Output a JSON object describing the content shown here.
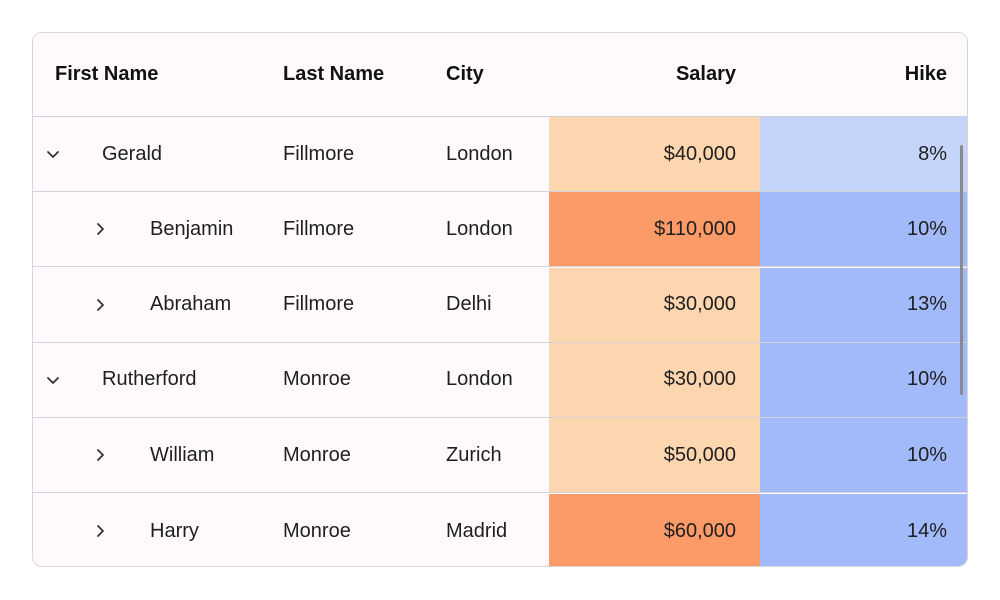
{
  "columns": {
    "first_name": "First Name",
    "last_name": "Last Name",
    "city": "City",
    "salary": "Salary",
    "hike": "Hike"
  },
  "rows": [
    {
      "first": "Gerald",
      "last": "Fillmore",
      "city": "London",
      "salary": "$40,000",
      "hike": "8%",
      "level": 0,
      "expanded": true,
      "salary_bg": "#fdd5ae",
      "hike_bg": "#c5d4fa"
    },
    {
      "first": "Benjamin",
      "last": "Fillmore",
      "city": "London",
      "salary": "$110,000",
      "hike": "10%",
      "level": 1,
      "expanded": false,
      "salary_bg": "#fc9a68",
      "hike_bg": "#a2b9fa"
    },
    {
      "first": "Abraham",
      "last": "Fillmore",
      "city": "Delhi",
      "salary": "$30,000",
      "hike": "13%",
      "level": 1,
      "expanded": false,
      "salary_bg": "#fdd5ae",
      "hike_bg": "#a2b9fa"
    },
    {
      "first": "Rutherford",
      "last": "Monroe",
      "city": "London",
      "salary": "$30,000",
      "hike": "10%",
      "level": 0,
      "expanded": true,
      "salary_bg": "#fdd5ae",
      "hike_bg": "#a2b9fa"
    },
    {
      "first": "William",
      "last": "Monroe",
      "city": "Zurich",
      "salary": "$50,000",
      "hike": "10%",
      "level": 1,
      "expanded": false,
      "salary_bg": "#fdd5ae",
      "hike_bg": "#a2b9fa"
    },
    {
      "first": "Harry",
      "last": "Monroe",
      "city": "Madrid",
      "salary": "$60,000",
      "hike": "14%",
      "level": 1,
      "expanded": false,
      "salary_bg": "#fc9a68",
      "hike_bg": "#a2b9fa"
    }
  ],
  "icons": {
    "expanded": "chevron-down-icon",
    "collapsed": "chevron-right-icon"
  }
}
